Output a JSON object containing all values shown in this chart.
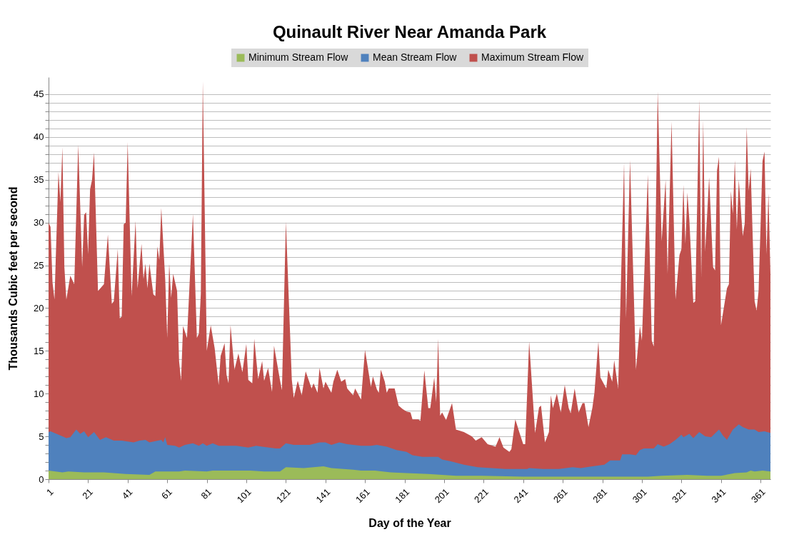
{
  "chart_data": {
    "type": "area",
    "title": "Quinault River Near Amanda Park",
    "xlabel": "Day of the Year",
    "ylabel": "Thousands Cubic feet per second",
    "xlim": [
      1,
      366
    ],
    "xticks": [
      1,
      21,
      41,
      61,
      81,
      101,
      121,
      141,
      161,
      181,
      201,
      221,
      241,
      261,
      281,
      301,
      321,
      341,
      361
    ],
    "ylim": [
      0,
      47
    ],
    "yticks": [
      0,
      {
        "value": 1,
        "label": null
      },
      {
        "value": 2,
        "label": null
      },
      {
        "value": 3,
        "label": null
      },
      {
        "value": 4,
        "label": null
      },
      5,
      {
        "value": 6,
        "label": null
      },
      {
        "value": 7,
        "label": null
      },
      {
        "value": 8,
        "label": null
      },
      {
        "value": 9,
        "label": null
      },
      10,
      {
        "value": 11,
        "label": null
      },
      {
        "value": 12,
        "label": null
      },
      {
        "value": 13,
        "label": null
      },
      {
        "value": 14,
        "label": null
      },
      15,
      {
        "value": 16,
        "label": null
      },
      {
        "value": 17,
        "label": null
      },
      {
        "value": 18,
        "label": null
      },
      {
        "value": 19,
        "label": null
      },
      20,
      {
        "value": 21,
        "label": null
      },
      {
        "value": 22,
        "label": null
      },
      {
        "value": 23,
        "label": null
      },
      {
        "value": 24,
        "label": null
      },
      25,
      {
        "value": 26,
        "label": null
      },
      {
        "value": 27,
        "label": null
      },
      {
        "value": 28,
        "label": null
      },
      {
        "value": 29,
        "label": null
      },
      30,
      {
        "value": 31,
        "label": null
      },
      {
        "value": 32,
        "label": null
      },
      {
        "value": 33,
        "label": null
      },
      {
        "value": 34,
        "label": null
      },
      35,
      {
        "value": 36,
        "label": null
      },
      {
        "value": 37,
        "label": null
      },
      {
        "value": 38,
        "label": null
      },
      {
        "value": 39,
        "label": null
      },
      40,
      {
        "value": 41,
        "label": null
      },
      {
        "value": 42,
        "label": null
      },
      {
        "value": 43,
        "label": null
      },
      {
        "value": 44,
        "label": null
      },
      45
    ],
    "grid": "y",
    "legend": "top",
    "series": [
      {
        "name": "Minimum Stream Flow",
        "color": "#9bbb59",
        "x": [
          1,
          8,
          11,
          19,
          29,
          40,
          52,
          55,
          67,
          70,
          81,
          84,
          89,
          103,
          110,
          118,
          121,
          130,
          140,
          144,
          155,
          159,
          166,
          174,
          182,
          193,
          207,
          220,
          241,
          262,
          273,
          304,
          311,
          324,
          334,
          341,
          348,
          354,
          356,
          358,
          362,
          366
        ],
        "values": [
          1.0,
          0.8,
          0.9,
          0.8,
          0.8,
          0.6,
          0.5,
          0.9,
          0.9,
          1.0,
          0.9,
          1.0,
          1.0,
          1.0,
          0.9,
          0.9,
          1.4,
          1.3,
          1.5,
          1.3,
          1.1,
          1.0,
          1.0,
          0.8,
          0.7,
          0.6,
          0.4,
          0.4,
          0.3,
          0.3,
          0.3,
          0.3,
          0.4,
          0.5,
          0.4,
          0.4,
          0.7,
          0.8,
          1.0,
          0.9,
          1.0,
          0.9
        ]
      },
      {
        "name": "Mean Stream Flow",
        "color": "#4f81bd",
        "x": [
          1,
          2,
          8,
          10,
          12,
          15,
          17,
          19,
          21,
          24,
          27,
          30,
          34,
          38,
          44,
          47,
          50,
          52,
          58,
          59,
          60,
          61,
          65,
          67,
          70,
          74,
          77,
          79,
          81,
          84,
          87,
          92,
          96,
          102,
          106,
          109,
          116,
          118,
          121,
          125,
          133,
          138,
          141,
          144,
          148,
          152,
          159,
          164,
          167,
          172,
          177,
          182,
          185,
          190,
          198,
          200,
          204,
          211,
          218,
          225,
          232,
          243,
          244,
          251,
          259,
          266,
          270,
          276,
          282,
          285,
          290,
          291,
          295,
          298,
          300,
          302,
          307,
          309,
          312,
          315,
          318,
          321,
          322,
          325,
          327,
          330,
          333,
          336,
          340,
          342,
          344,
          347,
          350,
          352,
          355,
          358,
          360,
          363,
          366
        ],
        "values": [
          5.5,
          5.6,
          5.0,
          4.8,
          4.9,
          5.8,
          5.3,
          5.6,
          4.9,
          5.5,
          4.6,
          4.9,
          4.5,
          4.5,
          4.3,
          4.5,
          4.6,
          4.3,
          4.6,
          4.3,
          4.9,
          4.0,
          3.9,
          3.7,
          4.0,
          4.2,
          3.9,
          4.2,
          3.9,
          4.2,
          3.9,
          3.9,
          3.9,
          3.7,
          3.9,
          3.8,
          3.6,
          3.6,
          4.2,
          4.0,
          4.0,
          4.3,
          4.3,
          4.0,
          4.3,
          4.1,
          3.9,
          3.9,
          4.0,
          3.8,
          3.4,
          3.2,
          2.8,
          2.6,
          2.6,
          2.3,
          2.1,
          1.7,
          1.4,
          1.3,
          1.2,
          1.2,
          1.3,
          1.2,
          1.2,
          1.4,
          1.3,
          1.5,
          1.7,
          2.2,
          2.2,
          2.9,
          2.9,
          2.8,
          3.4,
          3.6,
          3.6,
          4.1,
          3.8,
          4.1,
          4.6,
          5.2,
          4.9,
          5.3,
          4.8,
          5.5,
          5.0,
          4.9,
          5.8,
          5.1,
          4.6,
          5.8,
          6.4,
          6.1,
          5.8,
          5.8,
          5.5,
          5.6,
          5.4
        ]
      },
      {
        "name": "Maximum Stream Flow",
        "color": "#c0504d",
        "x": [
          1,
          2,
          3,
          4,
          6,
          7,
          8,
          9,
          10,
          12,
          14,
          16,
          18,
          19,
          20,
          21,
          22,
          23,
          24,
          26,
          29,
          31,
          33,
          34,
          36,
          37,
          38,
          39,
          40,
          41,
          43,
          45,
          46,
          48,
          49,
          50,
          51,
          52,
          54,
          55,
          56,
          57,
          58,
          60,
          61,
          62,
          63,
          64,
          66,
          67,
          68,
          69,
          71,
          74,
          76,
          77,
          78,
          79,
          81,
          83,
          85,
          87,
          88,
          90,
          91,
          92,
          93,
          95,
          97,
          99,
          101,
          102,
          104,
          105,
          107,
          109,
          110,
          112,
          114,
          115,
          118,
          119,
          121,
          124,
          125,
          127,
          129,
          131,
          134,
          135,
          137,
          138,
          140,
          141,
          144,
          145,
          147,
          149,
          151,
          152,
          155,
          156,
          159,
          161,
          164,
          165,
          167,
          168,
          169,
          171,
          172,
          173,
          176,
          178,
          180,
          182,
          184,
          185,
          188,
          189,
          191,
          193,
          194,
          196,
          197,
          198,
          199,
          200,
          202,
          205,
          207,
          211,
          215,
          217,
          220,
          223,
          227,
          229,
          231,
          234,
          235,
          237,
          239,
          241,
          242,
          244,
          247,
          249,
          250,
          252,
          254,
          255,
          256,
          258,
          260,
          262,
          264,
          265,
          267,
          269,
          271,
          272,
          274,
          276,
          277,
          279,
          280,
          283,
          284,
          286,
          287,
          289,
          292,
          293,
          295,
          298,
          300,
          301,
          304,
          306,
          307,
          309,
          311,
          313,
          314,
          316,
          318,
          320,
          321,
          322,
          323,
          324,
          325,
          327,
          328,
          330,
          331,
          332,
          333,
          335,
          337,
          338,
          339,
          340,
          341,
          344,
          345,
          346,
          347,
          348,
          349,
          350,
          352,
          353,
          354,
          355,
          356,
          358,
          359,
          360,
          362,
          363,
          364,
          365,
          366
        ],
        "values": [
          30.0,
          29.5,
          23.0,
          21.0,
          35.9,
          32.4,
          38.8,
          24.8,
          21.0,
          23.8,
          22.8,
          39.1,
          24.8,
          30.9,
          31.2,
          26.3,
          33.9,
          35.0,
          38.2,
          22.0,
          22.8,
          28.6,
          20.5,
          20.8,
          26.9,
          18.8,
          19.0,
          29.8,
          30.0,
          39.4,
          21.4,
          30.2,
          22.3,
          27.5,
          23.4,
          25.2,
          22.3,
          25.2,
          21.6,
          21.4,
          27.2,
          25.6,
          31.7,
          23.3,
          16.5,
          25.2,
          21.2,
          24.0,
          22.0,
          13.8,
          11.5,
          17.9,
          16.5,
          31.0,
          16.5,
          17.0,
          21.7,
          46.5,
          15.0,
          18.0,
          15.3,
          11.0,
          14.4,
          15.9,
          12.2,
          11.2,
          18.0,
          12.8,
          14.7,
          12.5,
          15.8,
          11.6,
          11.2,
          16.4,
          11.7,
          13.8,
          11.5,
          13.0,
          10.2,
          15.6,
          11.6,
          10.4,
          30.1,
          11.6,
          9.5,
          11.5,
          9.8,
          12.6,
          10.6,
          11.2,
          10.1,
          13.0,
          10.6,
          11.4,
          10.1,
          11.4,
          12.8,
          11.4,
          11.7,
          10.6,
          9.8,
          10.6,
          9.3,
          15.1,
          10.8,
          12.0,
          10.5,
          10.1,
          12.8,
          11.4,
          10.1,
          10.6,
          10.6,
          8.6,
          8.2,
          7.9,
          7.8,
          7.0,
          7.0,
          6.8,
          12.7,
          8.3,
          8.3,
          11.9,
          9.0,
          16.4,
          7.4,
          7.8,
          6.9,
          8.9,
          5.8,
          5.5,
          5.0,
          4.5,
          4.9,
          4.1,
          3.8,
          4.9,
          3.7,
          3.2,
          3.5,
          7.0,
          5.5,
          4.1,
          4.1,
          16.1,
          5.4,
          8.4,
          8.6,
          4.3,
          5.5,
          9.8,
          8.3,
          10.0,
          7.8,
          11.0,
          8.3,
          7.7,
          10.6,
          7.8,
          8.9,
          8.9,
          6.1,
          8.4,
          10.1,
          16.1,
          11.9,
          10.6,
          12.8,
          11.4,
          13.9,
          10.6,
          37.0,
          18.8,
          37.3,
          12.8,
          17.9,
          16.2,
          35.6,
          16.2,
          15.5,
          45.3,
          27.8,
          35.0,
          24.0,
          41.8,
          21.0,
          26.2,
          26.9,
          34.4,
          27.5,
          33.5,
          30.3,
          20.6,
          20.8,
          44.4,
          23.5,
          42.0,
          26.6,
          35.3,
          24.8,
          24.4,
          36.1,
          37.7,
          18.0,
          22.3,
          22.8,
          33.7,
          31.0,
          37.3,
          29.2,
          35.0,
          28.4,
          29.9,
          41.2,
          33.7,
          36.3,
          20.8,
          19.7,
          22.0,
          37.2,
          38.3,
          26.3,
          33.4,
          24.0
        ]
      }
    ]
  }
}
